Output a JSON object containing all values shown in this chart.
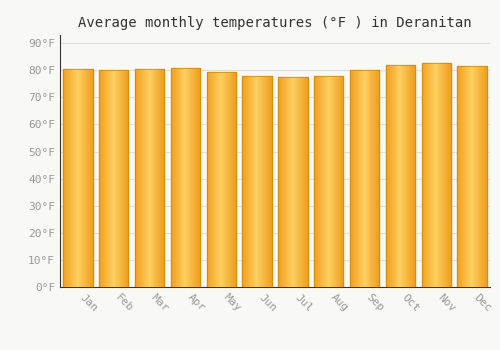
{
  "months": [
    "Jan",
    "Feb",
    "Mar",
    "Apr",
    "May",
    "Jun",
    "Jul",
    "Aug",
    "Sep",
    "Oct",
    "Nov",
    "Dec"
  ],
  "values": [
    80.5,
    80.0,
    80.5,
    81.0,
    79.5,
    78.0,
    77.5,
    78.0,
    80.0,
    82.0,
    82.5,
    81.5
  ],
  "bar_color_center": "#FFCC44",
  "bar_color_edge": "#F0A020",
  "background_color": "#F8F8F5",
  "grid_color": "#DDDDDD",
  "title": "Average monthly temperatures (°F ) in Deranitan",
  "title_fontsize": 10,
  "ylabel_ticks": [
    0,
    10,
    20,
    30,
    40,
    50,
    60,
    70,
    80,
    90
  ],
  "ylim": [
    0,
    93
  ],
  "tick_label_color": "#999999",
  "tick_fontsize": 8,
  "font_family": "monospace",
  "bar_width": 0.82
}
